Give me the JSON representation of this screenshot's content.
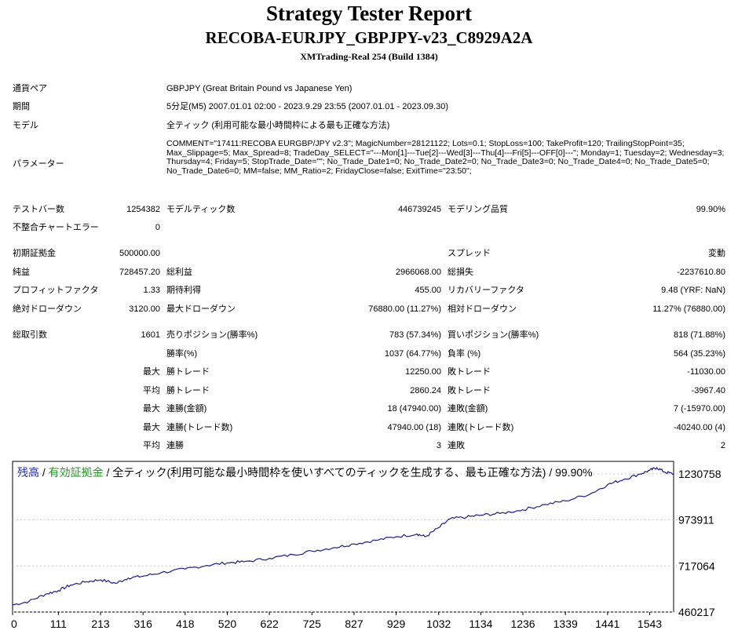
{
  "header": {
    "title": "Strategy Tester Report",
    "ea_name": "RECOBA-EURJPY_GBPJPY-v23_C8929A2A",
    "server": "XMTrading-Real 254 (Build 1384)"
  },
  "info": {
    "symbol_label": "通貨ペア",
    "symbol_value": "GBPJPY (Great Britain Pound vs Japanese Yen)",
    "period_label": "期間",
    "period_value": "5分足(M5) 2007.01.01 02:00 - 2023.9.29 23:55 (2007.01.01 - 2023.09.30)",
    "model_label": "モデル",
    "model_value": "全ティック (利用可能な最小時間枠による最も正確な方法)",
    "params_label": "パラメーター",
    "params_value": "COMMENT=\"17411:RECOBA EURGBP/JPY v2.3\"; MagicNumber=28121122; Lots=0.1; StopLoss=100; TakeProfit=120; TrailingStopPoint=35; Max_Slippage=5; Max_Spread=8; TradeDay_SELECT=\"---Mon[1]---Tue[2]---Wed[3]---Thu[4]---Fri[5]---OFF[0]---\"; Monday=1; Tuesday=2; Wednesday=3; Thursday=4; Friday=5; StopTrade_Date=\"\"; No_Trade_Date1=0; No_Trade_Date2=0; No_Trade_Date3=0; No_Trade_Date4=0; No_Trade_Date5=0; No_Trade_Date6=0; MM=false; MM_Ratio=2; FridayClose=false; ExitTime=\"23:50\";"
  },
  "stats": {
    "bars_label": "テストバー数",
    "bars_value": "1254382",
    "ticks_label": "モデルティック数",
    "ticks_value": "446739245",
    "quality_label": "モデリング品質",
    "quality_value": "99.90%",
    "mismatch_label": "不整合チャートエラー",
    "mismatch_value": "0",
    "deposit_label": "初期証拠金",
    "deposit_value": "500000.00",
    "spread_label": "スプレッド",
    "spread_value": "変動",
    "net_label": "純益",
    "net_value": "728457.20",
    "gross_profit_label": "総利益",
    "gross_profit_value": "2966068.00",
    "gross_loss_label": "総損失",
    "gross_loss_value": "-2237610.80",
    "pf_label": "プロフィットファクタ",
    "pf_value": "1.33",
    "expected_label": "期待利得",
    "expected_value": "455.00",
    "recovery_label": "リカバリーファクタ",
    "recovery_value": "9.48 (YRF: NaN)",
    "abs_dd_label": "絶対ドローダウン",
    "abs_dd_value": "3120.00",
    "max_dd_label": "最大ドローダウン",
    "max_dd_value": "76880.00 (11.27%)",
    "rel_dd_label": "相対ドローダウン",
    "rel_dd_value": "11.27% (76880.00)",
    "total_label": "総取引数",
    "total_value": "1601",
    "short_label": "売りポジション(勝率%)",
    "short_value": "783 (57.34%)",
    "long_label": "買いポジション(勝率%)",
    "long_value": "818 (71.88%)",
    "winrate_label": "勝率(%)",
    "winrate_value": "1037 (64.77%)",
    "lossrate_label": "負率 (%)",
    "lossrate_value": "564 (35.23%)",
    "max_word": "最大",
    "avg_word": "平均",
    "win_trade_label": "勝トレード",
    "loss_trade_label": "敗トレード",
    "max_win_trade": "12250.00",
    "max_loss_trade": "-11030.00",
    "avg_win_trade": "2860.24",
    "avg_loss_trade": "-3967.40",
    "consec_win_amt_label": "連勝(金額)",
    "consec_win_amt_value": "18 (47940.00)",
    "consec_loss_amt_label": "連敗(金額)",
    "consec_loss_amt_value": "7 (-15970.00)",
    "consec_win_cnt_label": "連勝(トレード数)",
    "consec_win_cnt_value": "47940.00 (18)",
    "consec_loss_cnt_label": "連敗(トレード数)",
    "consec_loss_cnt_value": "-40240.00 (4)",
    "avg_consec_win_label": "連勝",
    "avg_consec_win_value": "3",
    "avg_consec_loss_label": "連敗",
    "avg_consec_loss_value": "2"
  },
  "chart_data": {
    "type": "line",
    "legend_balance": "残高",
    "legend_sep1": " / ",
    "legend_equity": "有効証拠金",
    "legend_rest": " / 全ティック(利用可能な最小時間枠を使いすべてのティックを生成する、最も正確な方法) / 99.90%",
    "xlim": [
      0,
      1601
    ],
    "ylim": [
      460217,
      1300000
    ],
    "x_ticks": [
      "0",
      "111",
      "213",
      "316",
      "418",
      "520",
      "622",
      "725",
      "827",
      "929",
      "1032",
      "1134",
      "1236",
      "1339",
      "1441",
      "1543"
    ],
    "y_ticks": [
      "1230758",
      "973911",
      "717064",
      "460217"
    ],
    "series": [
      {
        "x": [
          0,
          40,
          80,
          111,
          140,
          180,
          213,
          250,
          280,
          316,
          360,
          418,
          470,
          520,
          560,
          622,
          680,
          725,
          780,
          827,
          880,
          929,
          980,
          1000,
          1032,
          1060,
          1100,
          1134,
          1180,
          1236,
          1290,
          1339,
          1400,
          1441,
          1480,
          1520,
          1543,
          1560,
          1580,
          1601
        ],
        "values": [
          500000,
          520000,
          560000,
          580000,
          610000,
          630000,
          640000,
          620000,
          650000,
          660000,
          680000,
          700000,
          720000,
          735000,
          740000,
          760000,
          780000,
          800000,
          820000,
          840000,
          860000,
          880000,
          895000,
          880000,
          930000,
          980000,
          990000,
          1000000,
          1010000,
          1030000,
          1060000,
          1080000,
          1120000,
          1170000,
          1200000,
          1230000,
          1250000,
          1265000,
          1240000,
          1230000
        ]
      }
    ]
  }
}
